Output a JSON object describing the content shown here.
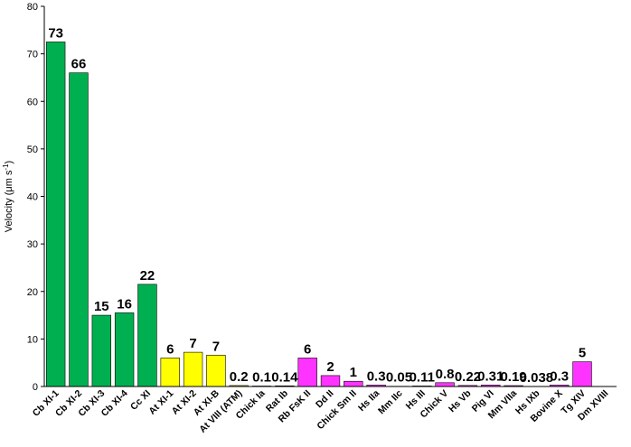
{
  "chart_data": {
    "type": "bar",
    "title": "",
    "xlabel": "",
    "ylabel": "Velocity (μm s",
    "ylabel_sup": "-1",
    "ylabel_close": ")",
    "ylim": [
      0,
      80
    ],
    "yticks": [
      0,
      10,
      20,
      30,
      40,
      50,
      60,
      70,
      80
    ],
    "grid": false,
    "legend": "none",
    "colors": {
      "green": "#00b050",
      "yellow": "#ffff00",
      "magenta": "#ff33ff"
    },
    "categories": [
      "Cb XI-1",
      "Cb XI-2",
      "Cb XI-3",
      "Cb XI-4",
      "Cc XI",
      "At XI-1",
      "At XI-2",
      "At XI-B",
      "At VIII (ATM)",
      "Chick Ia",
      "Rat Ib",
      "Rb FsK II",
      "Dd II",
      "Chick Sm II",
      "Hs IIa",
      "Mm IIc",
      "Hs III",
      "Chick V",
      "Hs Vb",
      "Pig VI",
      "Mm VIIa",
      "Hs IXb",
      "Bovine X",
      "Tg XIV",
      "Dm XVIII"
    ],
    "values": [
      72.5,
      66,
      15,
      15.5,
      21.5,
      6,
      7.2,
      6.6,
      0.2,
      0.1,
      0.14,
      6,
      2.3,
      1.1,
      0.3,
      0.05,
      0.11,
      0.8,
      0.22,
      0.31,
      0.19,
      0.038,
      0.3,
      5.2,
      0
    ],
    "data_labels": [
      "73",
      "66",
      "15",
      "16",
      "22",
      "6",
      "7",
      "7",
      "0.2",
      "0.1",
      "0.14",
      "6",
      "2",
      "1",
      "0.3",
      "0.05",
      "0.11",
      "0.8",
      "0.22",
      "0.31",
      "0.19",
      "0.038",
      "0.3",
      "5",
      ""
    ],
    "bar_colors": [
      "green",
      "green",
      "green",
      "green",
      "green",
      "yellow",
      "yellow",
      "yellow",
      "yellow",
      "magenta",
      "magenta",
      "magenta",
      "magenta",
      "magenta",
      "magenta",
      "magenta",
      "magenta",
      "magenta",
      "magenta",
      "magenta",
      "magenta",
      "magenta",
      "magenta",
      "magenta",
      "magenta"
    ]
  }
}
